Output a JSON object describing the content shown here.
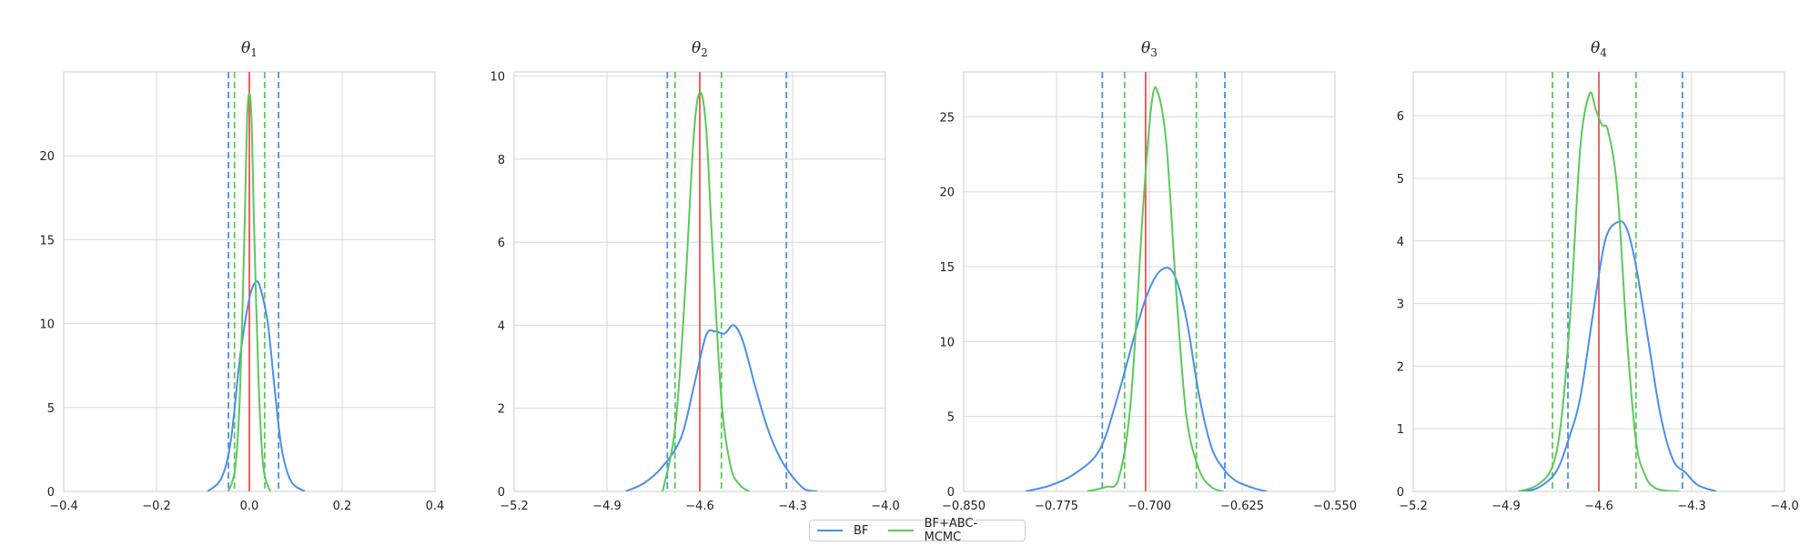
{
  "colors": {
    "bf": "#4a8fe8",
    "abc": "#5bc85b",
    "true_value": "#f05050",
    "grid": "#d8d8d8",
    "axes": "#cccccc"
  },
  "legend": {
    "bf_label": "BF",
    "abc_label": "BF+ABC-MCMC"
  },
  "chart_data": [
    {
      "type": "line",
      "title": "θ",
      "title_sub": "1",
      "xlim": [
        -0.4,
        0.4
      ],
      "ylim": [
        0,
        25
      ],
      "xticks": [
        -0.4,
        -0.2,
        0.0,
        0.2,
        0.4
      ],
      "xtick_labels": [
        "−0.4",
        "−0.2",
        "0.0",
        "0.2",
        "0.4"
      ],
      "yticks": [
        0,
        5,
        10,
        15,
        20
      ],
      "ytick_labels": [
        "0",
        "5",
        "10",
        "15",
        "20"
      ],
      "true_value": 0.0,
      "bf_interval": [
        -0.045,
        0.063
      ],
      "abc_interval": [
        -0.032,
        0.033
      ],
      "series": [
        {
          "name": "BF",
          "x": [
            -0.09,
            -0.06,
            -0.04,
            -0.02,
            0.0,
            0.015,
            0.025,
            0.04,
            0.055,
            0.07,
            0.09,
            0.12
          ],
          "y": [
            0,
            0.8,
            3.0,
            8.0,
            11.5,
            12.5,
            12.0,
            10.0,
            6.0,
            2.5,
            0.6,
            0
          ]
        },
        {
          "name": "BF+ABC-MCMC",
          "x": [
            -0.045,
            -0.03,
            -0.02,
            -0.01,
            -0.005,
            0.0,
            0.005,
            0.01,
            0.02,
            0.03,
            0.045
          ],
          "y": [
            0,
            1.5,
            6.0,
            16.0,
            22.0,
            23.7,
            22.0,
            16.0,
            6.5,
            1.5,
            0
          ]
        }
      ]
    },
    {
      "type": "line",
      "title": "θ",
      "title_sub": "2",
      "xlim": [
        -5.2,
        -4.0
      ],
      "ylim": [
        0,
        10.1
      ],
      "xticks": [
        -5.2,
        -4.9,
        -4.6,
        -4.3,
        -4.0
      ],
      "xtick_labels": [
        "−5.2",
        "−4.9",
        "−4.6",
        "−4.3",
        "−4.0"
      ],
      "yticks": [
        0,
        2,
        4,
        6,
        8,
        10
      ],
      "ytick_labels": [
        "0",
        "2",
        "4",
        "6",
        "8",
        "10"
      ],
      "true_value": -4.6,
      "bf_interval": [
        -4.705,
        -4.32
      ],
      "abc_interval": [
        -4.68,
        -4.53
      ],
      "series": [
        {
          "name": "BF",
          "x": [
            -4.84,
            -4.78,
            -4.72,
            -4.66,
            -4.62,
            -4.58,
            -4.55,
            -4.52,
            -4.49,
            -4.46,
            -4.42,
            -4.38,
            -4.34,
            -4.3,
            -4.26,
            -4.22
          ],
          "y": [
            0,
            0.2,
            0.6,
            1.3,
            2.5,
            3.75,
            3.85,
            3.8,
            4.0,
            3.6,
            2.5,
            1.5,
            0.8,
            0.35,
            0.05,
            0
          ]
        },
        {
          "name": "BF+ABC-MCMC",
          "x": [
            -4.72,
            -4.68,
            -4.65,
            -4.62,
            -4.6,
            -4.58,
            -4.56,
            -4.53,
            -4.5,
            -4.47,
            -4.44
          ],
          "y": [
            0,
            1.5,
            4.5,
            8.5,
            9.6,
            8.8,
            6.0,
            2.2,
            0.6,
            0.15,
            0
          ]
        }
      ]
    },
    {
      "type": "line",
      "title": "θ",
      "title_sub": "3",
      "xlim": [
        -0.85,
        -0.55
      ],
      "ylim": [
        0,
        28
      ],
      "xticks": [
        -0.85,
        -0.775,
        -0.7,
        -0.625,
        -0.55
      ],
      "xtick_labels": [
        "−0.850",
        "−0.775",
        "−0.700",
        "−0.625",
        "−0.550"
      ],
      "yticks": [
        0,
        5,
        10,
        15,
        20,
        25
      ],
      "ytick_labels": [
        "0",
        "5",
        "10",
        "15",
        "20",
        "25"
      ],
      "true_value": -0.703,
      "bf_interval": [
        -0.738,
        -0.639
      ],
      "abc_interval": [
        -0.72,
        -0.662
      ],
      "series": [
        {
          "name": "BF",
          "x": [
            -0.8,
            -0.78,
            -0.76,
            -0.74,
            -0.725,
            -0.71,
            -0.7,
            -0.69,
            -0.68,
            -0.67,
            -0.66,
            -0.65,
            -0.64,
            -0.63,
            -0.615,
            -0.605
          ],
          "y": [
            0,
            0.4,
            1.2,
            2.8,
            6.5,
            11.0,
            13.5,
            14.8,
            14.5,
            11.5,
            6.5,
            3.0,
            1.5,
            0.7,
            0.2,
            0
          ]
        },
        {
          "name": "BF+ABC-MCMC",
          "x": [
            -0.75,
            -0.735,
            -0.725,
            -0.715,
            -0.705,
            -0.698,
            -0.693,
            -0.686,
            -0.678,
            -0.67,
            -0.66,
            -0.65,
            -0.64
          ],
          "y": [
            0,
            0.3,
            0.8,
            6.0,
            19.0,
            26.0,
            26.6,
            23.0,
            13.0,
            5.0,
            1.5,
            0.3,
            0
          ]
        }
      ]
    },
    {
      "type": "line",
      "title": "θ",
      "title_sub": "4",
      "xlim": [
        -5.2,
        -4.0
      ],
      "ylim": [
        0,
        6.7
      ],
      "xticks": [
        -5.2,
        -4.9,
        -4.6,
        -4.3,
        -4.0
      ],
      "xtick_labels": [
        "−5.2",
        "−4.9",
        "−4.6",
        "−4.3",
        "−4.0"
      ],
      "yticks": [
        0,
        1,
        2,
        3,
        4,
        5,
        6
      ],
      "ytick_labels": [
        "0",
        "1",
        "2",
        "3",
        "4",
        "5",
        "6"
      ],
      "true_value": -4.6,
      "bf_interval": [
        -4.7,
        -4.33
      ],
      "abc_interval": [
        -4.75,
        -4.48
      ],
      "series": [
        {
          "name": "BF",
          "x": [
            -4.86,
            -4.8,
            -4.74,
            -4.7,
            -4.66,
            -4.62,
            -4.58,
            -4.54,
            -4.51,
            -4.48,
            -4.44,
            -4.4,
            -4.36,
            -4.32,
            -4.28,
            -4.22
          ],
          "y": [
            0,
            0.05,
            0.3,
            0.8,
            1.5,
            2.8,
            4.0,
            4.3,
            4.2,
            3.6,
            2.4,
            1.2,
            0.5,
            0.3,
            0.1,
            0
          ]
        },
        {
          "name": "BF+ABC-MCMC",
          "x": [
            -4.86,
            -4.8,
            -4.75,
            -4.72,
            -4.69,
            -4.66,
            -4.63,
            -4.61,
            -4.59,
            -4.57,
            -4.54,
            -4.51,
            -4.48,
            -4.45,
            -4.42,
            -4.38,
            -4.34
          ],
          "y": [
            0,
            0.1,
            0.4,
            1.2,
            3.0,
            5.5,
            6.35,
            6.1,
            5.85,
            5.75,
            4.8,
            2.5,
            0.8,
            0.25,
            0.06,
            0.01,
            0
          ]
        }
      ]
    }
  ]
}
